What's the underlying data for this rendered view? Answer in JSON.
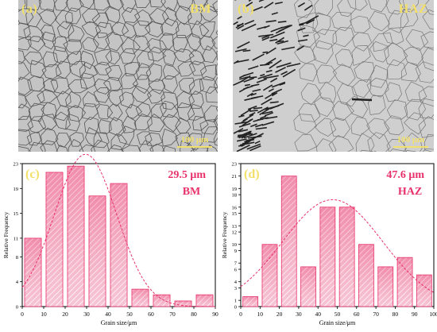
{
  "images": [
    {
      "tag": "(a)",
      "name": "BM",
      "scale": "100 μm"
    },
    {
      "tag": "(b)",
      "name": "HAZ",
      "scale": "100 μm"
    }
  ],
  "colors": {
    "accent": "#e8316b",
    "bar_fill": "#f4b3c8",
    "hatch": "#e8316b",
    "label_yellow": "#f2e06a"
  },
  "chart_data": [
    {
      "type": "bar",
      "panel_tag": "(c)",
      "annotation_value": "29.5 μm",
      "annotation_name": "BM",
      "xlabel": "Grain size/μm",
      "ylabel": "Relative Frequency",
      "x": [
        5,
        15,
        25,
        35,
        45,
        55,
        65,
        75,
        85
      ],
      "values": [
        11,
        21.6,
        22.6,
        17.8,
        19.8,
        2.8,
        1.9,
        0.9,
        1.9
      ],
      "xlim": [
        0,
        90
      ],
      "ylim": [
        0,
        23
      ],
      "xticks": [
        0,
        10,
        20,
        30,
        40,
        50,
        60,
        70,
        80,
        90
      ],
      "yticks": [
        0,
        4,
        8,
        11,
        15,
        19,
        23
      ],
      "fit": {
        "type": "gaussian",
        "peak_x": 29.5,
        "peak_y": 24.5,
        "sigma": 14.5
      },
      "grid": false
    },
    {
      "type": "bar",
      "panel_tag": "(d)",
      "annotation_value": "47.6 μm",
      "annotation_name": "HAZ",
      "xlabel": "Grain size/μm",
      "ylabel": "Relative Frequency",
      "x": [
        5,
        15,
        25,
        35,
        45,
        55,
        65,
        75,
        85,
        95
      ],
      "values": [
        1.6,
        10,
        21,
        6.4,
        16,
        16,
        10,
        6.4,
        7.9,
        5.1
      ],
      "xlim": [
        0,
        100
      ],
      "ylim": [
        0,
        23
      ],
      "xticks": [
        0,
        10,
        20,
        30,
        40,
        50,
        60,
        70,
        80,
        90,
        100
      ],
      "yticks": [
        0,
        1,
        3,
        4,
        6,
        7,
        9,
        10,
        12,
        13,
        15,
        16,
        18,
        19,
        21,
        23
      ],
      "fit": {
        "type": "gaussian",
        "peak_x": 47.6,
        "peak_y": 17.2,
        "sigma": 26
      },
      "grid": false
    }
  ]
}
